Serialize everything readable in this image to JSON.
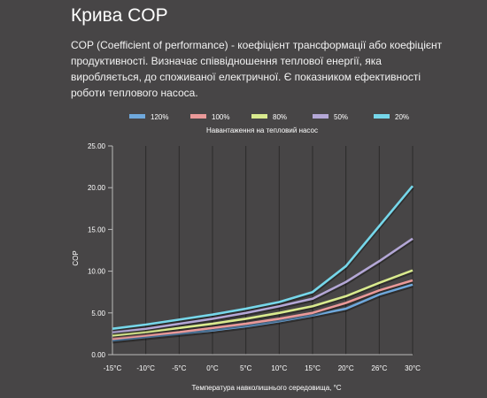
{
  "page": {
    "title": "Крива COP",
    "description": "COP (Coefficient of performance) - коефіцієнт трансформації або коефіцієнт продуктивності. Визначає співвідношення теплової енергії, яка виробляється, до споживаної електричної. Є показником ефективності роботи теплового насоса."
  },
  "chart_data": {
    "type": "line",
    "legend_title": "Навантаження на тепловий насос",
    "legend_position": "top",
    "xlabel": "Температура навколишнього середовища, °C",
    "ylabel": "COP",
    "categories": [
      "-15°C",
      "-10°C",
      "-5°C",
      "0°C",
      "5°C",
      "10°C",
      "15°C",
      "20°C",
      "26°C",
      "30°C"
    ],
    "ylim": [
      0,
      25
    ],
    "yticks": [
      "0.00",
      "5.00",
      "10.00",
      "15.00",
      "20.00",
      "25.00"
    ],
    "grid": "vertical",
    "series": [
      {
        "name": "120%",
        "color": "#6fa8dc",
        "values": [
          1.7,
          2.1,
          2.5,
          2.9,
          3.4,
          4.0,
          4.7,
          5.5,
          7.2,
          8.4
        ]
      },
      {
        "name": "100%",
        "color": "#ea9999",
        "values": [
          1.9,
          2.3,
          2.7,
          3.2,
          3.7,
          4.3,
          5.0,
          6.2,
          7.7,
          8.9
        ]
      },
      {
        "name": "80%",
        "color": "#d9ea8e",
        "values": [
          2.3,
          2.7,
          3.2,
          3.7,
          4.3,
          5.0,
          5.8,
          7.0,
          8.6,
          10.1
        ]
      },
      {
        "name": "50%",
        "color": "#b4a7d6",
        "values": [
          2.7,
          3.1,
          3.7,
          4.3,
          5.0,
          5.8,
          6.7,
          8.7,
          11.2,
          13.9
        ]
      },
      {
        "name": "20%",
        "color": "#76d7ea",
        "values": [
          3.1,
          3.6,
          4.2,
          4.8,
          5.5,
          6.3,
          7.5,
          10.6,
          15.4,
          20.2
        ]
      }
    ]
  }
}
